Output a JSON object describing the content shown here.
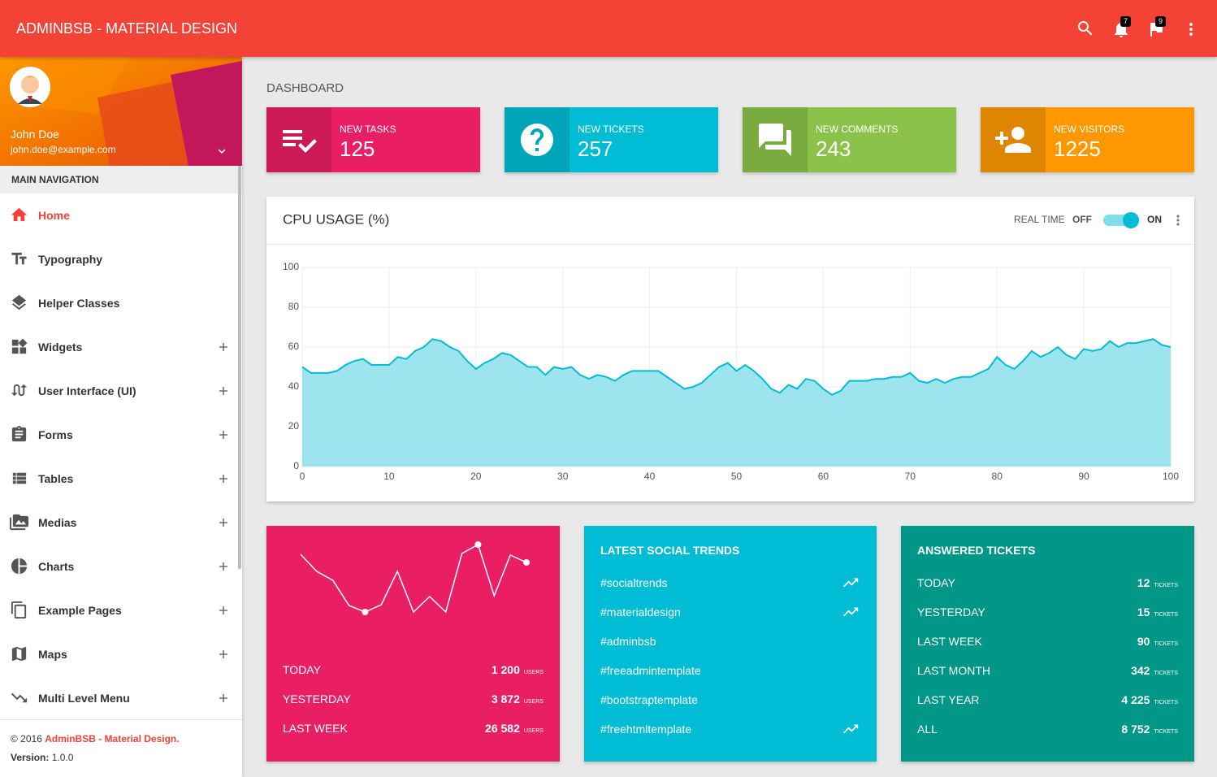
{
  "header": {
    "title": "ADMINBSB - MATERIAL DESIGN",
    "notifications": 7,
    "flags": 9
  },
  "user": {
    "name": "John Doe",
    "email": "john.doe@example.com"
  },
  "navigation": {
    "title": "MAIN NAVIGATION",
    "items": [
      {
        "label": "Home",
        "active": true
      },
      {
        "label": "Typography"
      },
      {
        "label": "Helper Classes"
      },
      {
        "label": "Widgets",
        "expandable": true
      },
      {
        "label": "User Interface (UI)",
        "expandable": true
      },
      {
        "label": "Forms",
        "expandable": true
      },
      {
        "label": "Tables",
        "expandable": true
      },
      {
        "label": "Medias",
        "expandable": true
      },
      {
        "label": "Charts",
        "expandable": true
      },
      {
        "label": "Example Pages",
        "expandable": true
      },
      {
        "label": "Maps",
        "expandable": true
      },
      {
        "label": "Multi Level Menu",
        "expandable": true
      }
    ]
  },
  "footer": {
    "copyright": "© 2016",
    "brand": "AdminBSB - Material Design.",
    "version_label": "Version:",
    "version": "1.0.0"
  },
  "page_title": "DASHBOARD",
  "info_boxes": [
    {
      "label": "NEW TASKS",
      "value": 125,
      "color": "#e91e63"
    },
    {
      "label": "NEW TICKETS",
      "value": 257,
      "color": "#00bcd4"
    },
    {
      "label": "NEW COMMENTS",
      "value": 243,
      "color": "#8bc34a"
    },
    {
      "label": "NEW VISITORS",
      "value": 1225,
      "color": "#ff9800"
    }
  ],
  "realtime": {
    "label": "REAL TIME",
    "off": "OFF",
    "on": "ON",
    "enabled": true
  },
  "chart_data": [
    {
      "type": "area",
      "title": "CPU USAGE (%)",
      "color": "#00bcd4",
      "fill": "#9ee4ef",
      "x": [
        0,
        1,
        2,
        3,
        4,
        5,
        6,
        7,
        8,
        9,
        10,
        11,
        12,
        13,
        14,
        15,
        16,
        17,
        18,
        19,
        20,
        21,
        22,
        23,
        24,
        25,
        26,
        27,
        28,
        29,
        30,
        31,
        32,
        33,
        34,
        35,
        36,
        37,
        38,
        39,
        40,
        41,
        42,
        43,
        44,
        45,
        46,
        47,
        48,
        49,
        50,
        51,
        52,
        53,
        54,
        55,
        56,
        57,
        58,
        59,
        60,
        61,
        62,
        63,
        64,
        65,
        66,
        67,
        68,
        69,
        70,
        71,
        72,
        73,
        74,
        75,
        76,
        77,
        78,
        79,
        80,
        81,
        82,
        83,
        84,
        85,
        86,
        87,
        88,
        89,
        90,
        91,
        92,
        93,
        94,
        95,
        96,
        97,
        98,
        99,
        100
      ],
      "values": [
        50,
        47,
        47,
        47,
        48,
        51,
        53,
        54,
        51,
        51,
        51,
        55,
        54,
        58,
        60,
        64,
        63,
        60,
        58,
        53,
        49,
        52,
        54,
        57,
        56,
        53,
        50,
        50,
        46,
        50,
        49,
        50,
        46,
        44,
        46,
        45,
        43,
        46,
        48,
        48,
        48,
        48,
        45,
        42,
        39,
        40,
        42,
        46,
        50,
        52,
        48,
        51,
        48,
        44,
        39,
        37,
        41,
        39,
        44,
        43,
        39,
        36,
        38,
        43,
        43,
        43,
        44,
        44,
        45,
        45,
        47,
        43,
        42,
        44,
        42,
        44,
        45,
        45,
        47,
        49,
        55,
        51,
        49,
        53,
        58,
        55,
        57,
        60,
        56,
        54,
        59,
        58,
        59,
        63,
        60,
        62,
        62,
        63,
        64,
        61,
        60
      ],
      "xlim": [
        0,
        100
      ],
      "ylim": [
        0,
        100
      ],
      "xticks": [
        0,
        10,
        20,
        30,
        40,
        50,
        60,
        70,
        80,
        90,
        100
      ],
      "yticks": [
        0,
        20,
        40,
        60,
        80,
        100
      ],
      "grid": true
    },
    {
      "type": "line",
      "color": "#ffffff",
      "values": [
        78,
        57,
        46,
        15,
        7,
        16,
        57,
        7,
        26,
        7,
        79,
        90,
        27,
        77,
        68
      ]
    }
  ],
  "visitor_stats": {
    "unit": "USERS",
    "rows": [
      {
        "label": "TODAY",
        "value": "1 200"
      },
      {
        "label": "YESTERDAY",
        "value": "3 872"
      },
      {
        "label": "LAST WEEK",
        "value": "26 582"
      }
    ]
  },
  "social_trends": {
    "title": "LATEST SOCIAL TRENDS",
    "items": [
      {
        "tag": "#socialtrends",
        "trending": true
      },
      {
        "tag": "#materialdesign",
        "trending": true
      },
      {
        "tag": "#adminbsb",
        "trending": false
      },
      {
        "tag": "#freeadmintemplate",
        "trending": false
      },
      {
        "tag": "#bootstraptemplate",
        "trending": false
      },
      {
        "tag": "#freehtmltemplate",
        "trending": true
      }
    ]
  },
  "answered_tickets": {
    "title": "ANSWERED TICKETS",
    "unit": "TICKETS",
    "rows": [
      {
        "label": "TODAY",
        "value": "12"
      },
      {
        "label": "YESTERDAY",
        "value": "15"
      },
      {
        "label": "LAST WEEK",
        "value": "90"
      },
      {
        "label": "LAST MONTH",
        "value": "342"
      },
      {
        "label": "LAST YEAR",
        "value": "4 225"
      },
      {
        "label": "ALL",
        "value": "8 752"
      }
    ]
  }
}
